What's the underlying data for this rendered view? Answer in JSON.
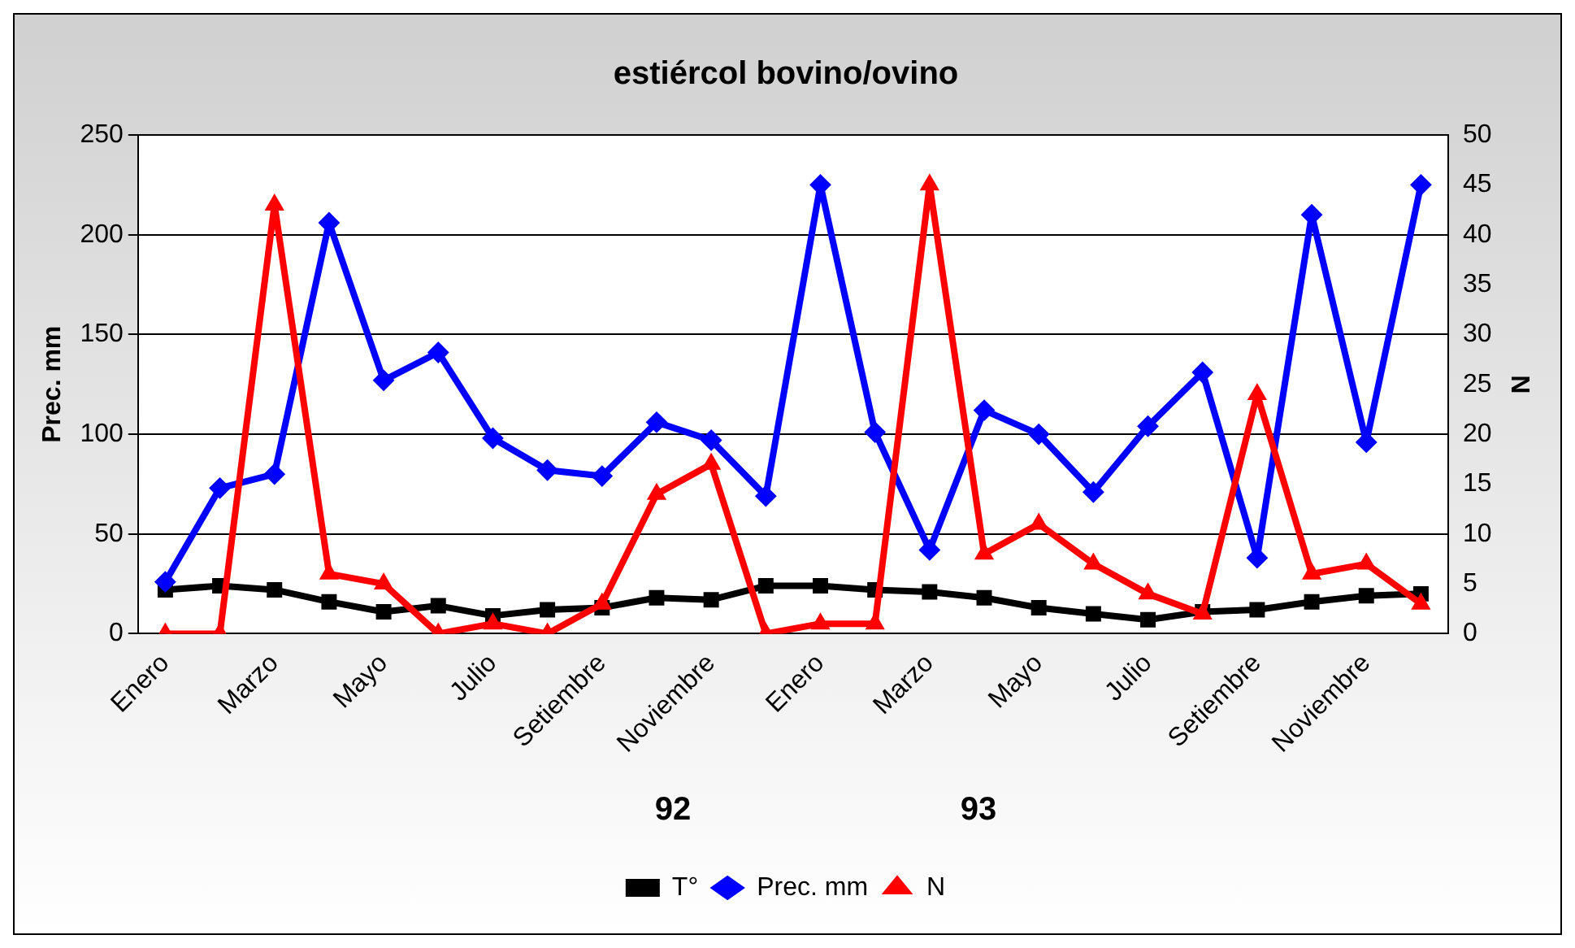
{
  "chart_data": {
    "type": "line",
    "title": "estiércol bovino/ovino",
    "ylabel": "Prec. mm",
    "y2label": "N",
    "categories": [
      "Enero",
      null,
      "Marzo",
      null,
      "Mayo",
      null,
      "Julio",
      null,
      "Setiembre",
      null,
      "Noviembre",
      null,
      "Enero",
      null,
      "Marzo",
      null,
      "Mayo",
      null,
      "Julio",
      null,
      "Setiembre",
      null,
      "Noviembre",
      null
    ],
    "series": [
      {
        "name": "T°",
        "color": "#000000",
        "marker": "square",
        "values": [
          22,
          24,
          22,
          16,
          11,
          14,
          9,
          12,
          13,
          18,
          17,
          24,
          24,
          22,
          21,
          18,
          13,
          10,
          7,
          11,
          12,
          16,
          19,
          20
        ]
      },
      {
        "name": "Prec. mm",
        "color": "#0000ff",
        "marker": "diamond",
        "values": [
          26,
          73,
          80,
          206,
          127,
          141,
          98,
          82,
          79,
          106,
          97,
          69,
          225,
          101,
          42,
          112,
          100,
          71,
          104,
          131,
          38,
          210,
          96,
          225
        ]
      },
      {
        "name": "N",
        "color": "#ff0000",
        "marker": "triangle",
        "axis": "y2",
        "values": [
          0,
          0,
          43,
          6,
          5,
          0,
          1,
          0,
          3,
          14,
          17,
          0,
          1,
          1,
          45,
          8,
          11,
          7,
          4,
          2,
          24,
          6,
          7,
          3
        ]
      }
    ],
    "ylim": [
      0,
      250
    ],
    "yticks": [
      0,
      50,
      100,
      150,
      200,
      250
    ],
    "y2lim": [
      0,
      50
    ],
    "y2ticks": [
      0,
      5,
      10,
      15,
      20,
      25,
      30,
      35,
      40,
      45,
      50
    ],
    "grid": "y",
    "legend": "bottom",
    "line_style": "solid",
    "annotations": [
      "92",
      "93"
    ]
  }
}
